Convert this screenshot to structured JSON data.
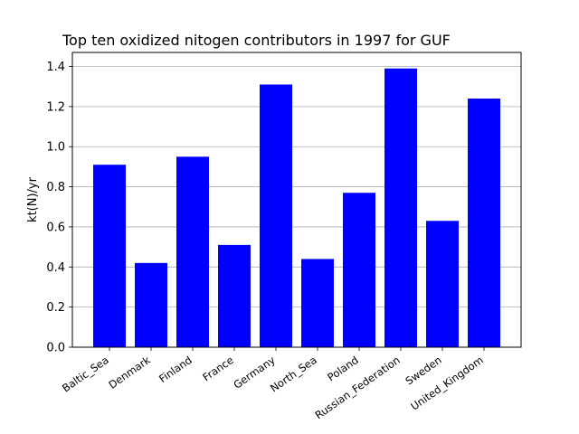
{
  "chart_data": {
    "type": "bar",
    "title": "Top ten oxidized nitogen contributors in 1997 for  GUF",
    "xlabel": "",
    "ylabel": "kt(N)/yr",
    "categories": [
      "Baltic_Sea",
      "Denmark",
      "Finland",
      "France",
      "Germany",
      "North_Sea",
      "Poland",
      "Russian_Federation",
      "Sweden",
      "United_Kingdom"
    ],
    "values": [
      0.91,
      0.42,
      0.95,
      0.51,
      1.31,
      0.44,
      0.77,
      1.39,
      0.63,
      1.24
    ],
    "ylim": [
      0,
      1.47
    ],
    "yticks": [
      0.0,
      0.2,
      0.4,
      0.6,
      0.8,
      1.0,
      1.2,
      1.4
    ],
    "ytick_labels": [
      "0.0",
      "0.2",
      "0.4",
      "0.6",
      "0.8",
      "1.0",
      "1.2",
      "1.4"
    ],
    "grid": "y",
    "bar_color": "#0000ff"
  }
}
